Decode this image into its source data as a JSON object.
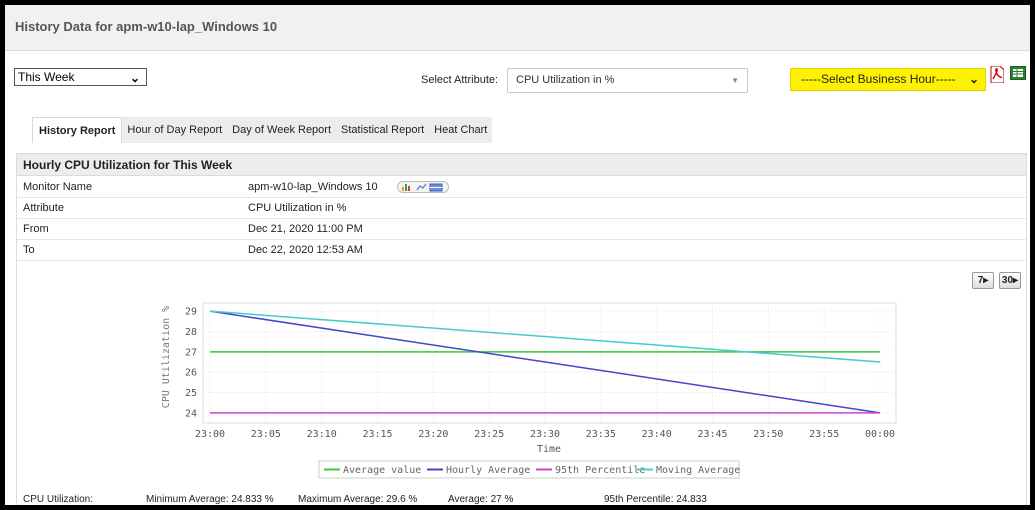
{
  "page": {
    "title": "History Data for apm-w10-lap_Windows 10"
  },
  "controls": {
    "period": "This Week",
    "attribute_label": "Select Attribute:",
    "attribute_value": "CPU Utilization in %",
    "business_hour": "-----Select Business Hour-----"
  },
  "tabs": [
    {
      "label": "History Report",
      "active": true
    },
    {
      "label": "Hour of Day Report"
    },
    {
      "label": "Day of Week Report"
    },
    {
      "label": "Statistical Report"
    },
    {
      "label": "Heat Chart"
    }
  ],
  "report": {
    "title": "Hourly CPU Utilization for This Week",
    "rows": [
      {
        "label": "Monitor Name",
        "value": "apm-w10-lap_Windows 10"
      },
      {
        "label": "Attribute",
        "value": "CPU Utilization in %"
      },
      {
        "label": "From",
        "value": "Dec 21, 2020 11:00 PM"
      },
      {
        "label": "To",
        "value": "Dec 22, 2020 12:53 AM"
      }
    ],
    "zoom_buttons": [
      "7",
      "30"
    ]
  },
  "chart_data": {
    "type": "line",
    "xlabel": "Time",
    "ylabel": "CPU Utilization %",
    "x": [
      "23:00",
      "23:05",
      "23:10",
      "23:15",
      "23:20",
      "23:25",
      "23:30",
      "23:35",
      "23:40",
      "23:45",
      "23:50",
      "23:55",
      "00:00"
    ],
    "yticks": [
      24,
      25,
      26,
      27,
      28,
      29
    ],
    "ylim": [
      23.5,
      29.4
    ],
    "grid": true,
    "legend_position": "bottom",
    "series": [
      {
        "name": "Average value",
        "color": "#33cc33",
        "points": [
          [
            0,
            27
          ],
          [
            60,
            27
          ]
        ]
      },
      {
        "name": "Hourly Average",
        "color": "#4444cc",
        "points": [
          [
            0,
            29
          ],
          [
            60,
            24
          ]
        ]
      },
      {
        "name": "95th Percentile",
        "color": "#cc44cc",
        "points": [
          [
            0,
            24
          ],
          [
            60,
            24
          ]
        ]
      },
      {
        "name": "Moving Average",
        "color": "#44cccc",
        "points": [
          [
            0,
            29
          ],
          [
            60,
            26.5
          ]
        ]
      }
    ]
  },
  "stats": {
    "label": "CPU Utilization:",
    "min": "Minimum Average:  24.833  %",
    "max": "Maximum Average:  29.6  %",
    "avg": "Average:  27  %",
    "p95": "95th Percentile:  24.833"
  }
}
